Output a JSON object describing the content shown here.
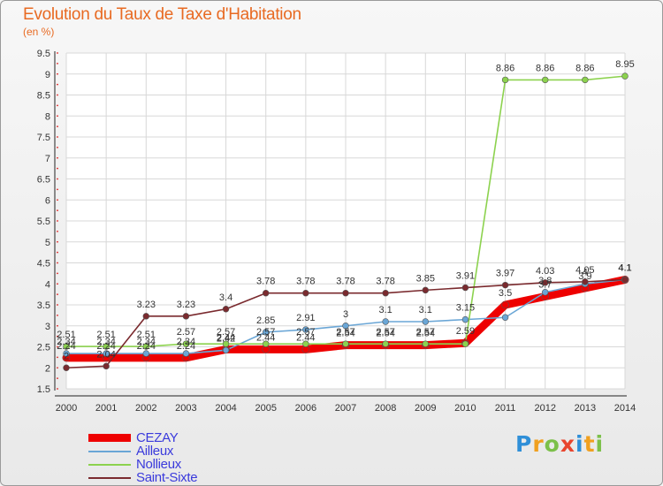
{
  "title": "Evolution du Taux de Taxe d'Habitation",
  "unit_label": "(en %)",
  "brand": {
    "text": "Proxiti",
    "letters": [
      {
        "ch": "P",
        "color": "#2f8fd8"
      },
      {
        "ch": "r",
        "color": "#f0a020"
      },
      {
        "ch": "o",
        "color": "#7cc04a"
      },
      {
        "ch": "x",
        "color": "#e8452e"
      },
      {
        "ch": "i",
        "color": "#2f8fd8"
      },
      {
        "ch": "t",
        "color": "#f0a020"
      },
      {
        "ch": "i",
        "color": "#7cc04a"
      }
    ]
  },
  "chart_data": {
    "type": "line",
    "title": "Evolution du Taux de Taxe d'Habitation",
    "ylabel": "(en %)",
    "ylim": [
      1.5,
      9.5
    ],
    "yticks": [
      "1.5",
      "2",
      "2.5",
      "3",
      "3.5",
      "4",
      "4.5",
      "5",
      "5.5",
      "6",
      "6.5",
      "7",
      "7.5",
      "8",
      "8.5",
      "9",
      "9.5"
    ],
    "x": [
      "2000",
      "2001",
      "2002",
      "2003",
      "2004",
      "2005",
      "2006",
      "2007",
      "2008",
      "2009",
      "2010",
      "2011",
      "2012",
      "2013",
      "2014"
    ],
    "grid": true,
    "legend_position": "bottom-left",
    "series": [
      {
        "name": "CEZAY",
        "color": "#ee0000",
        "values": [
          2.24,
          2.24,
          2.24,
          2.24,
          2.44,
          2.44,
          2.44,
          2.54,
          2.54,
          2.54,
          2.59,
          3.5,
          3.7,
          3.9,
          4.1
        ],
        "labels": [
          "2.24",
          "2.24",
          "2.24",
          "2.24",
          "2.44",
          "2.44",
          "2.44",
          "2.54",
          "2.54",
          "2.54",
          "2.59",
          "3.5",
          "3.7",
          "3.9",
          "4.1"
        ]
      },
      {
        "name": "Ailleux",
        "color": "#6aa6d6",
        "values": [
          2.34,
          2.34,
          2.34,
          2.34,
          2.42,
          2.85,
          2.91,
          3,
          3.1,
          3.1,
          3.15,
          3.2,
          3.8,
          4,
          4.1
        ],
        "labels": [
          "2.34",
          "2.34",
          "2.34",
          "2.34",
          "2.42",
          "2.85",
          "2.91",
          "3",
          "3.1",
          "3.1",
          "3.15",
          "",
          "3.8",
          "4",
          "4.1"
        ]
      },
      {
        "name": "Nollieux",
        "color": "#8cd24e",
        "values": [
          2.51,
          2.51,
          2.51,
          2.57,
          2.57,
          2.57,
          2.57,
          2.57,
          2.57,
          2.57,
          2.57,
          8.86,
          8.86,
          8.86,
          8.95
        ],
        "labels": [
          "2.51",
          "2.51",
          "2.51",
          "2.57",
          "2.57",
          "2.57",
          "2.57",
          "2.57",
          "2.57",
          "2.57",
          "",
          "8.86",
          "8.86",
          "8.86",
          "8.95"
        ]
      },
      {
        "name": "Saint-Sixte",
        "color": "#7a2a2e",
        "values": [
          2,
          2.04,
          3.23,
          3.23,
          3.4,
          3.78,
          3.78,
          3.78,
          3.78,
          3.85,
          3.91,
          3.97,
          4.03,
          4.05,
          4.1
        ],
        "labels": [
          "2",
          "2.04",
          "3.23",
          "3.23",
          "3.4",
          "3.78",
          "3.78",
          "3.78",
          "3.78",
          "3.85",
          "3.91",
          "3.97",
          "4.03",
          "4.05",
          "4.1"
        ]
      }
    ]
  }
}
